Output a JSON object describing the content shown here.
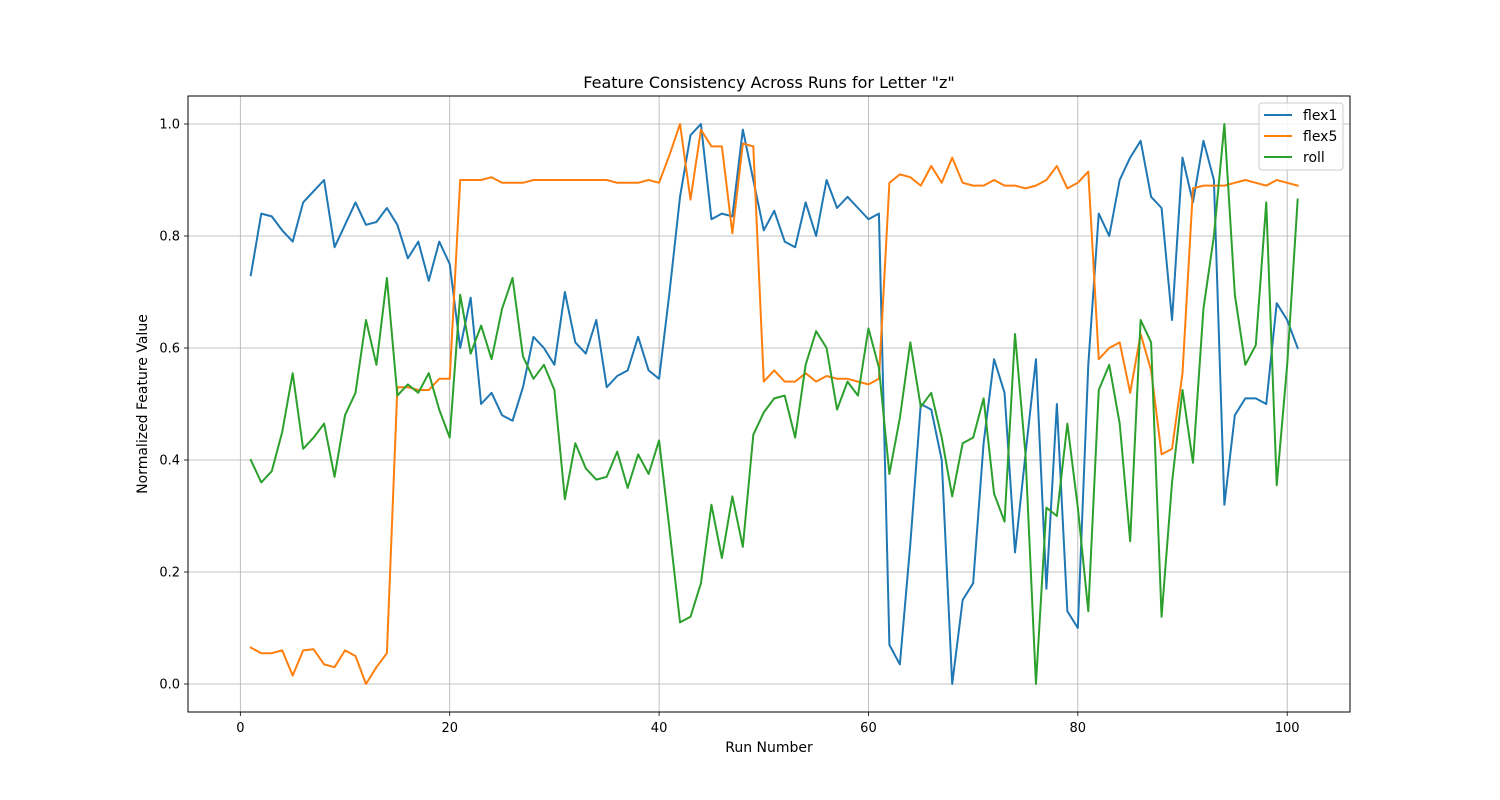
{
  "chart_data": {
    "type": "line",
    "title": "Feature Consistency Across Runs for Letter \"z\"",
    "xlabel": "Run Number",
    "ylabel": "Normalized Feature Value",
    "xlim": [
      -5,
      106
    ],
    "ylim": [
      -0.05,
      1.05
    ],
    "xticks": [
      0,
      20,
      40,
      60,
      80,
      100
    ],
    "yticks": [
      0.0,
      0.2,
      0.4,
      0.6,
      0.8,
      1.0
    ],
    "xtick_labels": [
      "0",
      "20",
      "40",
      "60",
      "80",
      "100"
    ],
    "ytick_labels": [
      "0.0",
      "0.2",
      "0.4",
      "0.6",
      "0.8",
      "1.0"
    ],
    "grid": true,
    "legend_position": "top-right",
    "x": [
      1,
      2,
      3,
      4,
      5,
      6,
      7,
      8,
      9,
      10,
      11,
      12,
      13,
      14,
      15,
      16,
      17,
      18,
      19,
      20,
      21,
      22,
      23,
      24,
      25,
      26,
      27,
      28,
      29,
      30,
      31,
      32,
      33,
      34,
      35,
      36,
      37,
      38,
      39,
      40,
      41,
      42,
      43,
      44,
      45,
      46,
      47,
      48,
      49,
      50,
      51,
      52,
      53,
      54,
      55,
      56,
      57,
      58,
      59,
      60,
      61,
      62,
      63,
      64,
      65,
      66,
      67,
      68,
      69,
      70,
      71,
      72,
      73,
      74,
      75,
      76,
      77,
      78,
      79,
      80,
      81,
      82,
      83,
      84,
      85,
      86,
      87,
      88,
      89,
      90,
      91,
      92,
      93,
      94,
      95,
      96,
      97,
      98,
      99,
      100,
      101
    ],
    "series": [
      {
        "name": "flex1",
        "color": "#1f77b4",
        "values": [
          0.73,
          0.84,
          0.835,
          0.81,
          0.79,
          0.86,
          0.88,
          0.9,
          0.78,
          0.82,
          0.86,
          0.82,
          0.825,
          0.85,
          0.82,
          0.76,
          0.79,
          0.72,
          0.79,
          0.75,
          0.6,
          0.69,
          0.5,
          0.52,
          0.48,
          0.47,
          0.53,
          0.62,
          0.6,
          0.57,
          0.7,
          0.61,
          0.59,
          0.65,
          0.53,
          0.55,
          0.56,
          0.62,
          0.56,
          0.545,
          0.7,
          0.87,
          0.98,
          1.0,
          0.83,
          0.84,
          0.835,
          0.99,
          0.9,
          0.81,
          0.845,
          0.79,
          0.78,
          0.86,
          0.8,
          0.9,
          0.85,
          0.87,
          0.85,
          0.83,
          0.84,
          0.07,
          0.035,
          0.25,
          0.5,
          0.49,
          0.4,
          0.0,
          0.15,
          0.18,
          0.43,
          0.58,
          0.52,
          0.235,
          0.41,
          0.58,
          0.17,
          0.5,
          0.13,
          0.1,
          0.57,
          0.84,
          0.8,
          0.9,
          0.94,
          0.97,
          0.87,
          0.85,
          0.65,
          0.94,
          0.86,
          0.97,
          0.9,
          0.32,
          0.48,
          0.51,
          0.51,
          0.5,
          0.68,
          0.65,
          0.6
        ]
      },
      {
        "name": "flex5",
        "color": "#ff7f0e",
        "values": [
          0.065,
          0.055,
          0.055,
          0.06,
          0.015,
          0.06,
          0.062,
          0.035,
          0.03,
          0.06,
          0.05,
          0.0,
          0.03,
          0.055,
          0.53,
          0.53,
          0.525,
          0.525,
          0.545,
          0.545,
          0.9,
          0.9,
          0.9,
          0.905,
          0.895,
          0.895,
          0.895,
          0.9,
          0.9,
          0.9,
          0.9,
          0.9,
          0.9,
          0.9,
          0.9,
          0.895,
          0.895,
          0.895,
          0.9,
          0.895,
          0.945,
          1.0,
          0.865,
          0.99,
          0.96,
          0.96,
          0.805,
          0.965,
          0.96,
          0.54,
          0.56,
          0.54,
          0.54,
          0.555,
          0.54,
          0.55,
          0.545,
          0.545,
          0.54,
          0.535,
          0.545,
          0.895,
          0.91,
          0.905,
          0.89,
          0.925,
          0.895,
          0.94,
          0.895,
          0.89,
          0.89,
          0.9,
          0.89,
          0.89,
          0.885,
          0.89,
          0.9,
          0.925,
          0.885,
          0.895,
          0.915,
          0.58,
          0.6,
          0.61,
          0.52,
          0.625,
          0.56,
          0.41,
          0.42,
          0.555,
          0.885,
          0.89,
          0.89,
          0.89,
          0.895,
          0.9,
          0.895,
          0.89,
          0.9,
          0.895,
          0.89
        ]
      },
      {
        "name": "roll",
        "color": "#2ca02c",
        "values": [
          0.4,
          0.36,
          0.38,
          0.45,
          0.555,
          0.42,
          0.44,
          0.465,
          0.37,
          0.48,
          0.52,
          0.65,
          0.57,
          0.725,
          0.515,
          0.535,
          0.52,
          0.555,
          0.49,
          0.44,
          0.695,
          0.59,
          0.64,
          0.58,
          0.67,
          0.725,
          0.585,
          0.545,
          0.57,
          0.525,
          0.33,
          0.43,
          0.385,
          0.365,
          0.37,
          0.415,
          0.35,
          0.41,
          0.375,
          0.435,
          0.275,
          0.11,
          0.12,
          0.18,
          0.32,
          0.225,
          0.335,
          0.245,
          0.445,
          0.485,
          0.51,
          0.515,
          0.44,
          0.57,
          0.63,
          0.6,
          0.49,
          0.54,
          0.515,
          0.635,
          0.565,
          0.375,
          0.475,
          0.61,
          0.495,
          0.52,
          0.44,
          0.335,
          0.43,
          0.44,
          0.51,
          0.34,
          0.29,
          0.625,
          0.41,
          0.0,
          0.315,
          0.3,
          0.465,
          0.315,
          0.13,
          0.525,
          0.57,
          0.465,
          0.255,
          0.65,
          0.61,
          0.12,
          0.36,
          0.525,
          0.395,
          0.67,
          0.8,
          1.0,
          0.695,
          0.57,
          0.605,
          0.86,
          0.355,
          0.57,
          0.865
        ]
      }
    ]
  }
}
